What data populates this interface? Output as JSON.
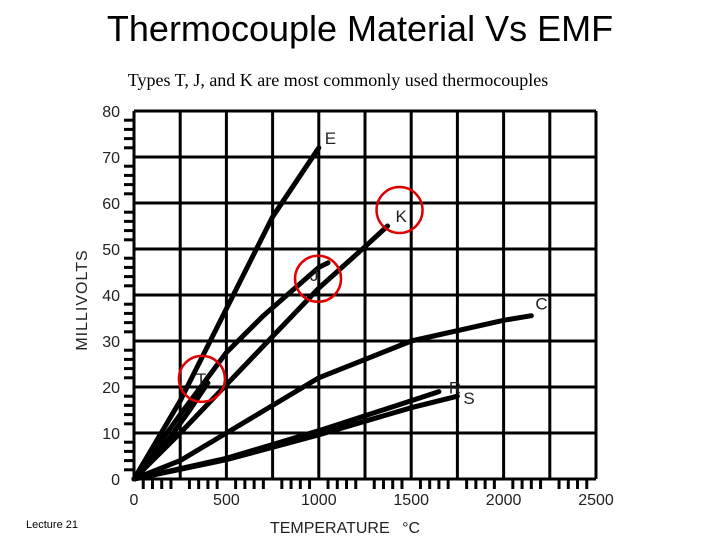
{
  "slide": {
    "title": "Thermocouple Material Vs EMF",
    "subtitle": "Types T, J, and K are most commonly used thermocouples",
    "footer": "Lecture 21"
  },
  "chart_data": {
    "type": "line",
    "xlabel": "TEMPERATURE",
    "xunit": "°C",
    "ylabel": "MILLIVOLTS",
    "xlim": [
      0,
      2500
    ],
    "ylim": [
      0,
      80
    ],
    "x_ticks": [
      0,
      500,
      1000,
      1500,
      2000,
      2500
    ],
    "y_ticks": [
      0,
      10,
      20,
      30,
      40,
      50,
      60,
      70,
      80
    ],
    "grid": true,
    "series": [
      {
        "name": "E",
        "points": [
          [
            0,
            0
          ],
          [
            250,
            17
          ],
          [
            500,
            37
          ],
          [
            750,
            57
          ],
          [
            1000,
            72
          ]
        ]
      },
      {
        "name": "K",
        "points": [
          [
            0,
            0
          ],
          [
            250,
            10
          ],
          [
            500,
            20.5
          ],
          [
            750,
            31
          ],
          [
            1000,
            41.5
          ],
          [
            1250,
            50.5
          ],
          [
            1372,
            55
          ]
        ]
      },
      {
        "name": "J",
        "points": [
          [
            0,
            0
          ],
          [
            250,
            14
          ],
          [
            500,
            27.5
          ],
          [
            700,
            35.5
          ],
          [
            800,
            39
          ],
          [
            1000,
            46
          ],
          [
            1050,
            47
          ]
        ]
      },
      {
        "name": "C",
        "points": [
          [
            0,
            0
          ],
          [
            250,
            4
          ],
          [
            500,
            10
          ],
          [
            1000,
            22
          ],
          [
            1500,
            30
          ],
          [
            2000,
            34.5
          ],
          [
            2150,
            35.5
          ]
        ]
      },
      {
        "name": "T",
        "points": [
          [
            0,
            0
          ],
          [
            100,
            4.3
          ],
          [
            200,
            9.3
          ],
          [
            300,
            14.9
          ],
          [
            400,
            20.9
          ]
        ]
      },
      {
        "name": "R",
        "points": [
          [
            0,
            0
          ],
          [
            500,
            4.5
          ],
          [
            1000,
            10.5
          ],
          [
            1500,
            17
          ],
          [
            1650,
            19
          ]
        ]
      },
      {
        "name": "S",
        "points": [
          [
            0,
            0
          ],
          [
            500,
            4.2
          ],
          [
            1000,
            9.6
          ],
          [
            1500,
            15.5
          ],
          [
            1750,
            18
          ]
        ]
      }
    ],
    "circled": [
      "K",
      "J",
      "T"
    ],
    "colors": {
      "line": "#000000",
      "grid": "#000000",
      "highlight": "#e00000",
      "label": "#222222"
    }
  }
}
